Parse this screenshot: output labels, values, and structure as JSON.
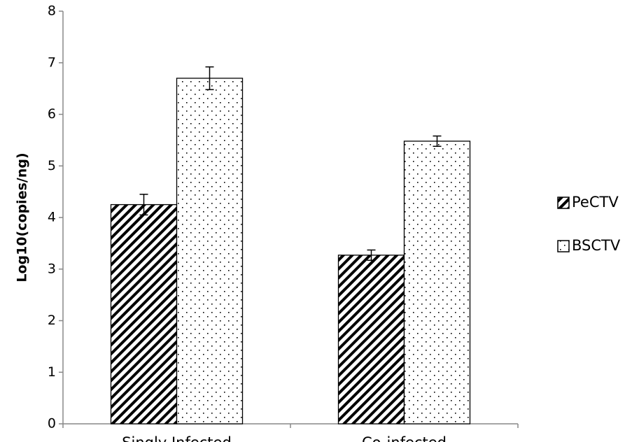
{
  "chart_data": {
    "type": "bar",
    "y_label": "Log10(copies/ng)",
    "categories": [
      "Singly Infected",
      "Co-infected"
    ],
    "series": [
      {
        "name": "PeCTV",
        "pattern": "hatch",
        "color": "#000000",
        "values": [
          4.25,
          3.27
        ],
        "errors": [
          0.2,
          0.1
        ]
      },
      {
        "name": "BSCTV",
        "pattern": "dots",
        "color": "#000000",
        "values": [
          6.7,
          5.48
        ],
        "errors": [
          0.22,
          0.1
        ]
      }
    ],
    "ylim": [
      0,
      8
    ],
    "yticks": [
      0,
      1,
      2,
      3,
      4,
      5,
      6,
      7,
      8
    ],
    "grid": false,
    "legend": "right"
  }
}
